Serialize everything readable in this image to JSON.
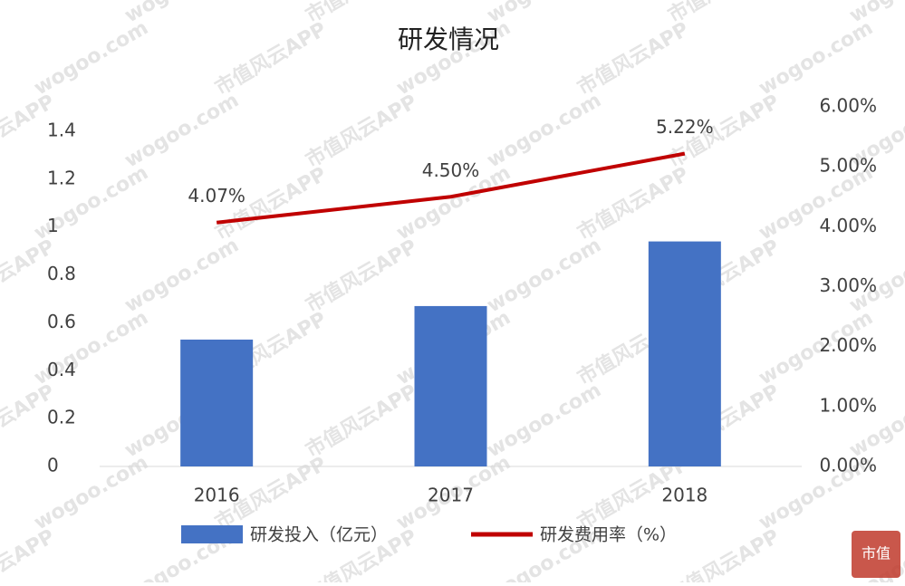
{
  "chart_data": {
    "type": "bar",
    "title": "研发情况",
    "categories": [
      "2016",
      "2017",
      "2018"
    ],
    "series": [
      {
        "name": "研发投入（亿元）",
        "type": "bar",
        "color": "#4472c4",
        "values": [
          0.53,
          0.67,
          0.94
        ]
      },
      {
        "name": "研发费用率（%）",
        "type": "line",
        "axis": "y2",
        "color": "#c00000",
        "values": [
          4.07,
          4.5,
          5.22
        ],
        "value_labels": [
          "4.07%",
          "4.50%",
          "5.22%"
        ]
      }
    ],
    "ylim": [
      0,
      1.4
    ],
    "yticks": [
      0,
      0.2,
      0.4,
      0.6,
      0.8,
      1,
      1.2,
      1.4
    ],
    "y2lim": [
      0,
      6
    ],
    "y2ticks": [
      {
        "value": 0,
        "label": "0.00%"
      },
      {
        "value": 1,
        "label": "1.00%"
      },
      {
        "value": 2,
        "label": "2.00%"
      },
      {
        "value": 3,
        "label": "3.00%"
      },
      {
        "value": 4,
        "label": "4.00%"
      },
      {
        "value": 5,
        "label": "5.00%"
      },
      {
        "value": 6,
        "label": "6.00%"
      }
    ],
    "grid": false,
    "legend": "bottom",
    "watermark": [
      "市值风云APP",
      "wogoo.com"
    ],
    "logo": "市值"
  }
}
